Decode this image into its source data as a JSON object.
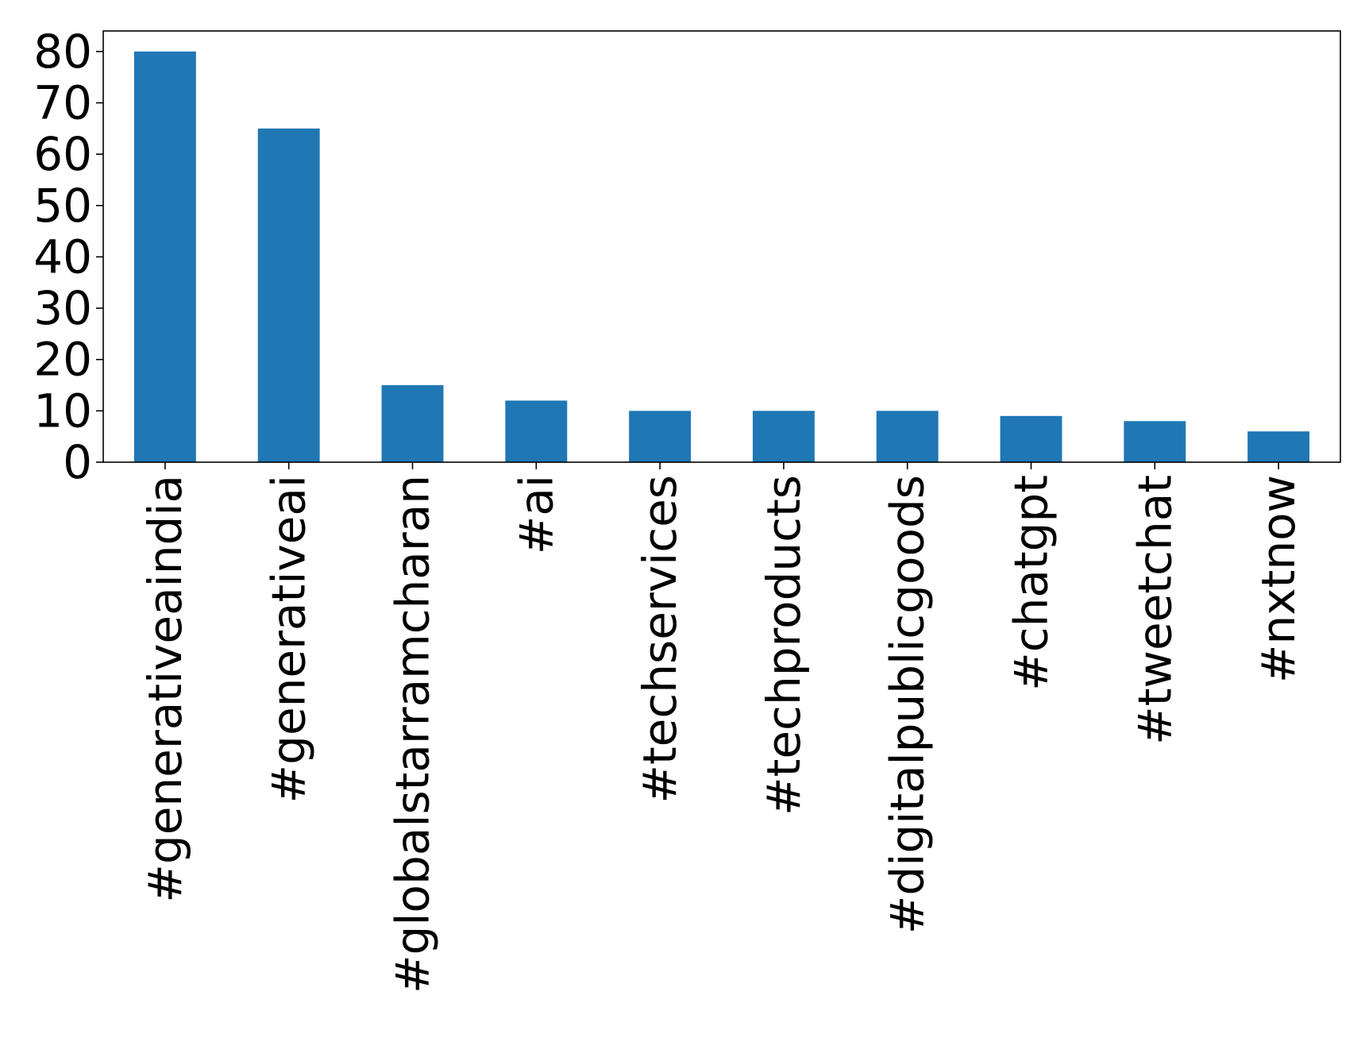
{
  "chart_data": {
    "type": "bar",
    "title": "",
    "xlabel": "",
    "ylabel": "",
    "categories": [
      "#generativeaindia",
      "#generativeai",
      "#globalstarramcharan",
      "#ai",
      "#techservices",
      "#techproducts",
      "#digitalpublicgoods",
      "#chatgpt",
      "#tweetchat",
      "#nxtnow"
    ],
    "values": [
      80,
      65,
      15,
      12,
      10,
      10,
      10,
      9,
      8,
      6
    ],
    "ylim": [
      0,
      84
    ],
    "yticks": [
      0,
      10,
      20,
      30,
      40,
      50,
      60,
      70,
      80
    ],
    "grid": false,
    "legend": "none",
    "bar_color": "#1f77b4"
  }
}
